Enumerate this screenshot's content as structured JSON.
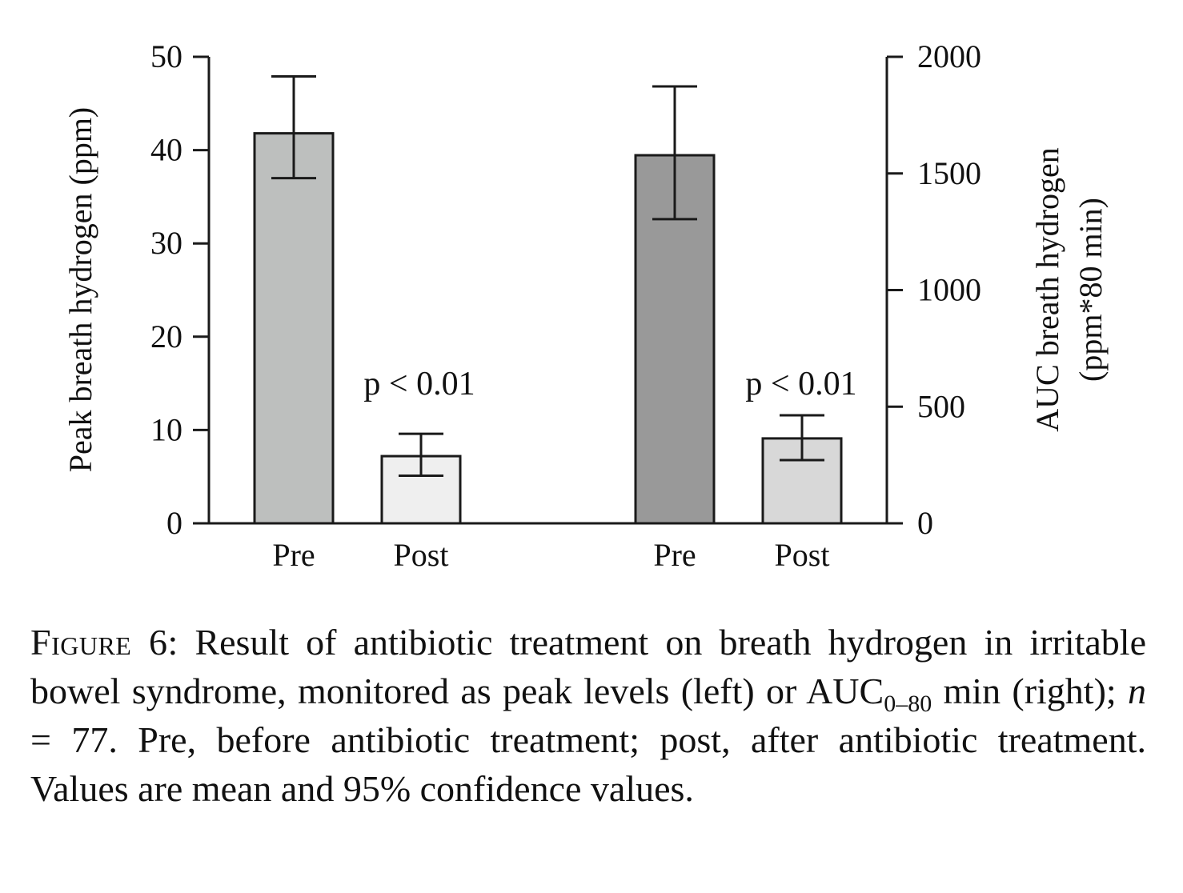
{
  "chart_data": [
    {
      "type": "bar",
      "panel": "left",
      "categories": [
        "Pre",
        "Post"
      ],
      "values": [
        41.8,
        7.2
      ],
      "error_low": [
        37.0,
        5.1
      ],
      "error_high": [
        47.9,
        9.6
      ],
      "colors": [
        "#bdbfbe",
        "#efefef"
      ],
      "ylabel": "Peak breath hydrogen (ppm)",
      "ylim": [
        0,
        50
      ],
      "yticks": [
        0,
        10,
        20,
        30,
        40,
        50
      ],
      "axis_side": "left",
      "annotation": "p < 0.01",
      "grid": false
    },
    {
      "type": "bar",
      "panel": "right",
      "categories": [
        "Pre",
        "Post"
      ],
      "values": [
        1578,
        364
      ],
      "error_low": [
        1304,
        271
      ],
      "error_high": [
        1873,
        463
      ],
      "colors": [
        "#999999",
        "#d8d8d8"
      ],
      "ylabel": [
        "AUC breath hydrogen",
        "(ppm*80 min)"
      ],
      "ylim": [
        0,
        2000
      ],
      "yticks": [
        0,
        500,
        1000,
        1500,
        2000
      ],
      "axis_side": "right",
      "annotation": "p < 0.01",
      "grid": false
    }
  ],
  "caption": {
    "label": "Figure 6",
    "part1": ": Result of antibiotic treatment on breath hydrogen in irritable bowel syndrome, monitored as peak levels (left) or AUC",
    "subscript": "0–80",
    "part2": " min (right); ",
    "n_var": "n",
    "part3": " = 77. Pre, before antibiotic treatment; post, after antibiotic treatment. Values are mean and 95% confidence values."
  }
}
